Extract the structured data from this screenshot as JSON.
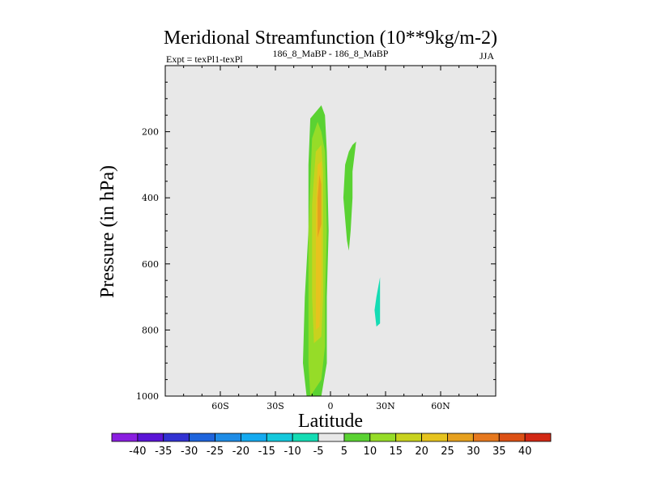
{
  "chart_data": {
    "type": "contour",
    "title": "Meridional Streamfunction (10**9kg/m-2)",
    "subtitle_left": "Expt = texPl1-texPl",
    "subtitle_center": "186_8_MaBP - 186_8_MaBP",
    "subtitle_right": "JJA",
    "xlabel": "Latitude",
    "ylabel": "Pressure (in hPa)",
    "xlim": [
      -90,
      90
    ],
    "ylim": [
      1000,
      0
    ],
    "x_ticks": [
      {
        "value": -60,
        "label": "60S"
      },
      {
        "value": -30,
        "label": "30S"
      },
      {
        "value": 0,
        "label": "0"
      },
      {
        "value": 30,
        "label": "30N"
      },
      {
        "value": 60,
        "label": "60N"
      }
    ],
    "y_ticks": [
      {
        "value": 200,
        "label": "200"
      },
      {
        "value": 400,
        "label": "400"
      },
      {
        "value": 600,
        "label": "600"
      },
      {
        "value": 800,
        "label": "800"
      },
      {
        "value": 1000,
        "label": "1000"
      }
    ],
    "background_color": "#e8e8e8",
    "colorbar": {
      "labels": [
        "-40",
        "-35",
        "-30",
        "-25",
        "-20",
        "-15",
        "-10",
        "-5",
        "5",
        "10",
        "15",
        "20",
        "25",
        "30",
        "35",
        "40"
      ],
      "colors": [
        "#8a1ee0",
        "#5a14d6",
        "#3232d2",
        "#1e64dc",
        "#1e8ce6",
        "#14aaf0",
        "#14c8dc",
        "#14dcb4",
        "#e8e8e8",
        "#5ad232",
        "#96dc28",
        "#c8d21e",
        "#e6c31e",
        "#e6a01e",
        "#e6781e",
        "#dc5014",
        "#d22814"
      ]
    },
    "contour_regions": [
      {
        "level": 10,
        "color": "#5ad232",
        "polygon": [
          [
            -13,
            1000
          ],
          [
            -15,
            900
          ],
          [
            -14,
            700
          ],
          [
            -12,
            500
          ],
          [
            -12,
            300
          ],
          [
            -11,
            160
          ],
          [
            -5,
            120
          ],
          [
            -3,
            150
          ],
          [
            -2,
            260
          ],
          [
            -1,
            500
          ],
          [
            -2,
            700
          ],
          [
            -2,
            900
          ],
          [
            -5,
            1000
          ]
        ]
      },
      {
        "level": 10,
        "color": "#5ad232",
        "polygon": [
          [
            8,
            300
          ],
          [
            7,
            400
          ],
          [
            9,
            530
          ],
          [
            10,
            560
          ],
          [
            11,
            500
          ],
          [
            12,
            400
          ],
          [
            12,
            320
          ],
          [
            14,
            230
          ],
          [
            12,
            240
          ],
          [
            10,
            260
          ]
        ]
      },
      {
        "level": -5,
        "color": "#14dcb4",
        "polygon": [
          [
            24,
            740
          ],
          [
            25,
            700
          ],
          [
            27,
            640
          ],
          [
            27,
            700
          ],
          [
            27,
            780
          ],
          [
            25,
            790
          ]
        ]
      },
      {
        "level": 15,
        "color": "#96dc28",
        "polygon": [
          [
            -11,
            1000
          ],
          [
            -12,
            900
          ],
          [
            -12,
            500
          ],
          [
            -10,
            220
          ],
          [
            -7,
            170
          ],
          [
            -5,
            200
          ],
          [
            -3,
            260
          ],
          [
            -2,
            500
          ],
          [
            -3,
            700
          ],
          [
            -3,
            850
          ],
          [
            -5,
            950
          ]
        ]
      },
      {
        "level": 20,
        "color": "#c8d21e",
        "polygon": [
          [
            -9,
            840
          ],
          [
            -10,
            700
          ],
          [
            -10,
            420
          ],
          [
            -8,
            260
          ],
          [
            -5,
            240
          ],
          [
            -4,
            320
          ],
          [
            -4,
            520
          ],
          [
            -4,
            700
          ],
          [
            -5,
            820
          ]
        ]
      },
      {
        "level": 25,
        "color": "#e6c31e",
        "polygon": [
          [
            -8,
            800
          ],
          [
            -8,
            700
          ],
          [
            -8,
            600
          ],
          [
            -8,
            450
          ],
          [
            -7,
            300
          ],
          [
            -5,
            290
          ],
          [
            -5,
            380
          ],
          [
            -5,
            520
          ],
          [
            -5,
            640
          ],
          [
            -6,
            790
          ]
        ]
      },
      {
        "level": 30,
        "color": "#e6a01e",
        "polygon": [
          [
            -7,
            520
          ],
          [
            -7,
            400
          ],
          [
            -6,
            330
          ],
          [
            -5,
            360
          ],
          [
            -5,
            480
          ]
        ]
      }
    ]
  }
}
